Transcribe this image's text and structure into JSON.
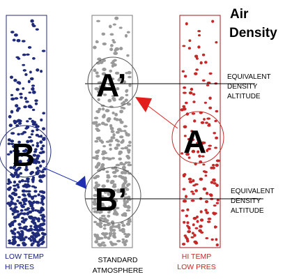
{
  "title": {
    "line1": "Air",
    "line2": "Density"
  },
  "columns": [
    {
      "id": "cold",
      "caption_line1": "LOW TEMP",
      "caption_line2": "HI PRES",
      "caption_color": "#1a237e",
      "dot_color": "#1f2a7a",
      "marker_letter": "B"
    },
    {
      "id": "standard",
      "caption_line1": "STANDARD",
      "caption_line2": "ATMOSPHERE",
      "caption_color": "#000000",
      "dot_color": "#9a9a9a",
      "marker_letters": [
        "A’",
        "B’"
      ]
    },
    {
      "id": "hot",
      "caption_line1": "HI TEMP",
      "caption_line2": "LOW PRES",
      "caption_color": "#c62828",
      "dot_color": "#c62828",
      "marker_letter": "A"
    }
  ],
  "side_labels": [
    {
      "line1": "EQUIVALENT",
      "line2": "DENSITY",
      "line3": "ALTITUDE"
    },
    {
      "line1": "EQUIVALENT",
      "line2": "DENSITY",
      "line3": "ALTITUDE"
    }
  ],
  "colors": {
    "arrow_red": "#e31c1c",
    "arrow_blue": "#1f2fb0",
    "guide_line": "#000000"
  }
}
